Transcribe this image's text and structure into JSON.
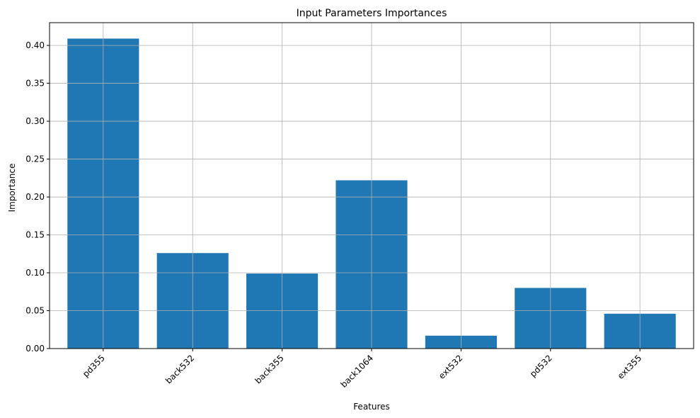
{
  "chart_data": {
    "type": "bar",
    "title": "Input Parameters Importances",
    "xlabel": "Features",
    "ylabel": "Importance",
    "categories": [
      "pd355",
      "back532",
      "back355",
      "back1064",
      "ext532",
      "pd532",
      "ext355"
    ],
    "values": [
      0.409,
      0.126,
      0.099,
      0.222,
      0.017,
      0.08,
      0.046
    ],
    "ylim": [
      0,
      0.43
    ],
    "yticks": [
      0.0,
      0.05,
      0.1,
      0.15,
      0.2,
      0.25,
      0.3,
      0.35,
      0.4
    ],
    "ytick_labels": [
      "0.00",
      "0.05",
      "0.10",
      "0.15",
      "0.20",
      "0.25",
      "0.30",
      "0.35",
      "0.40"
    ],
    "grid": true,
    "bar_color": "#1f77b4",
    "grid_color": "#b0b0b0"
  }
}
